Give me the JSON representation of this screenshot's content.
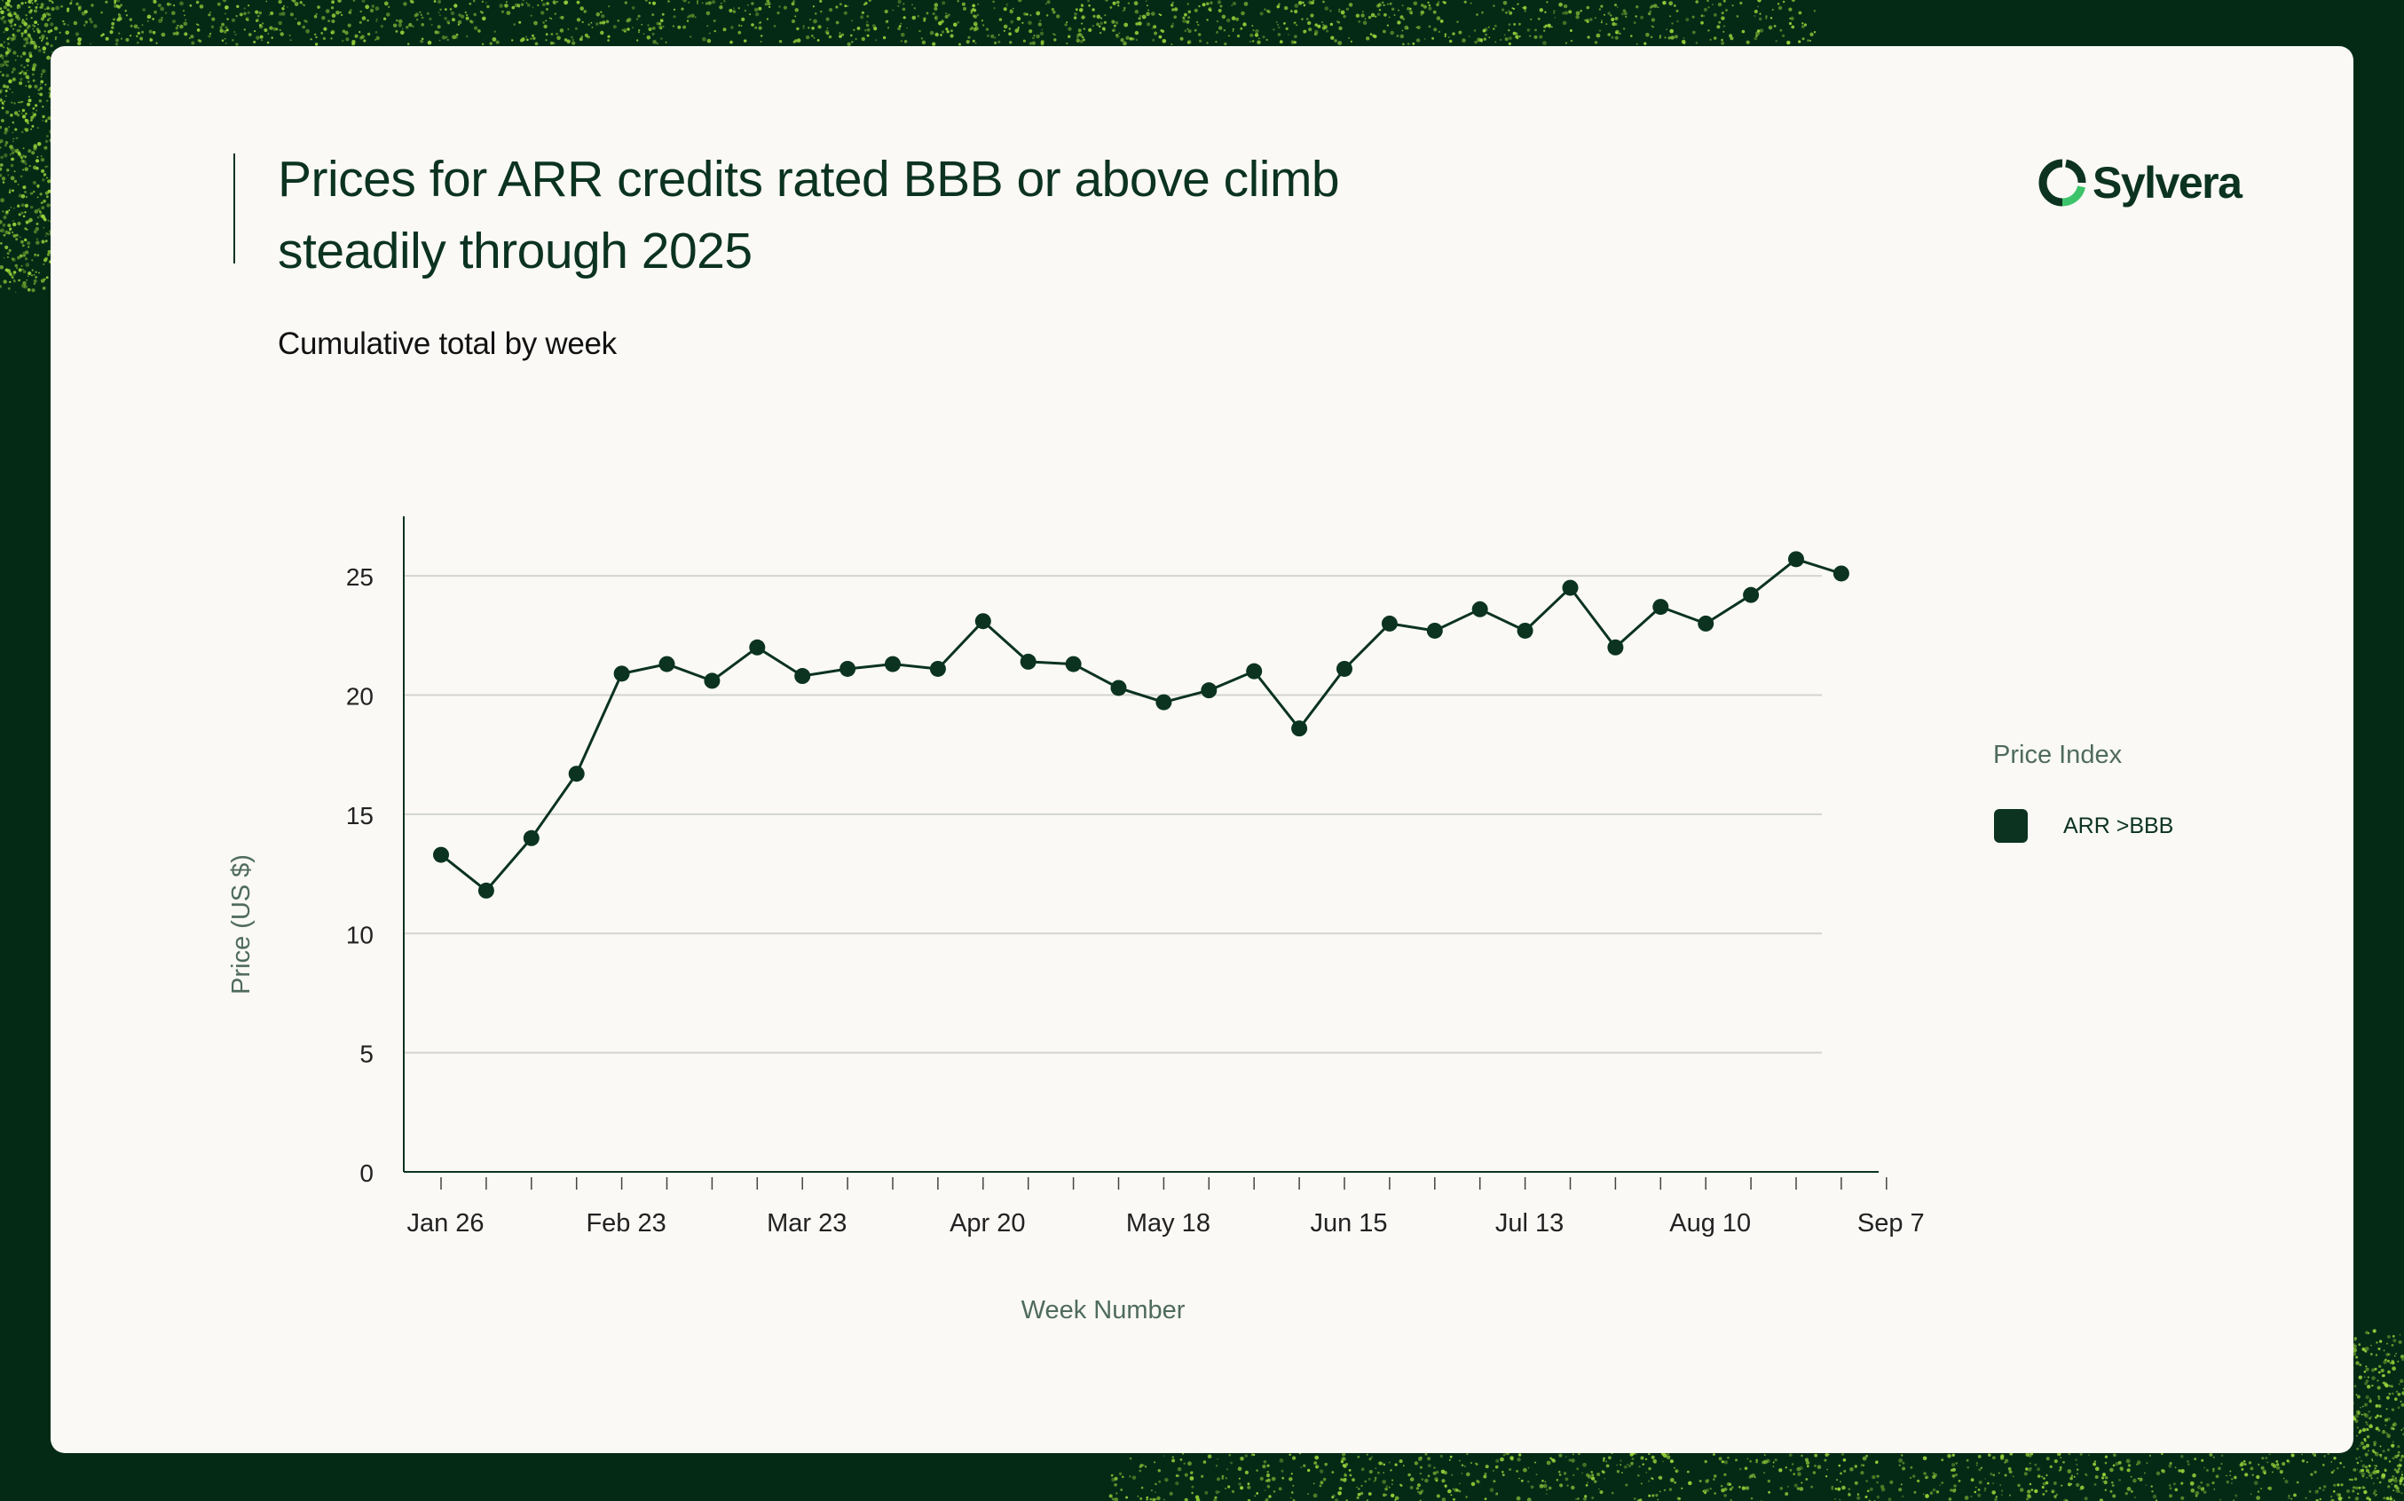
{
  "title": "Prices for ARR credits rated BBB or above climb steadily through 2025",
  "subtitle": "Cumulative total by week",
  "brand": {
    "name": "Sylvera",
    "icon": "sylvera-logo-icon"
  },
  "colors": {
    "background": "#042a16",
    "card": "#faf9f5",
    "primary": "#0b3320",
    "grid": "#d3d4cf",
    "accent": "#9bd43a",
    "logo_accent": "#3dc46b",
    "muted_text": "#4f6b5d"
  },
  "legend": {
    "title": "Price Index",
    "entries": [
      "ARR >BBB"
    ]
  },
  "chart_data": {
    "type": "line",
    "title": "Prices for ARR credits rated BBB or above climb steadily through 2025",
    "subtitle": "Cumulative total by week",
    "xlabel": "Week Number",
    "ylabel": "Price (US $)",
    "ylim": [
      0,
      27.5
    ],
    "yticks": [
      0,
      5,
      10,
      15,
      20,
      25
    ],
    "grid": true,
    "legend_position": "right",
    "x_tick_labels": [
      {
        "label": "Jan 26",
        "week": 0
      },
      {
        "label": "Feb 23",
        "week": 4
      },
      {
        "label": "Mar 23",
        "week": 8
      },
      {
        "label": "Apr 20",
        "week": 12
      },
      {
        "label": "May 18",
        "week": 16
      },
      {
        "label": "Jun 15",
        "week": 20
      },
      {
        "label": "Jul 13",
        "week": 24
      },
      {
        "label": "Aug 10",
        "week": 28
      },
      {
        "label": "Sep 7",
        "week": 32
      }
    ],
    "series": [
      {
        "name": "ARR >BBB",
        "color": "#0b3320",
        "x": [
          0,
          1,
          2,
          3,
          4,
          5,
          6,
          7,
          8,
          9,
          10,
          11,
          12,
          13,
          14,
          15,
          16,
          17,
          18,
          19,
          20,
          21,
          22,
          23,
          24,
          25,
          26,
          27,
          28,
          29,
          30,
          31
        ],
        "values": [
          13.3,
          11.8,
          14.0,
          16.7,
          20.9,
          21.3,
          20.6,
          22.0,
          20.8,
          21.1,
          21.3,
          21.1,
          23.1,
          21.4,
          21.3,
          20.3,
          19.7,
          20.2,
          21.0,
          18.6,
          21.1,
          23.0,
          22.7,
          23.6,
          22.7,
          24.5,
          22.0,
          23.7,
          23.0,
          24.2,
          25.7,
          25.1
        ]
      }
    ]
  }
}
